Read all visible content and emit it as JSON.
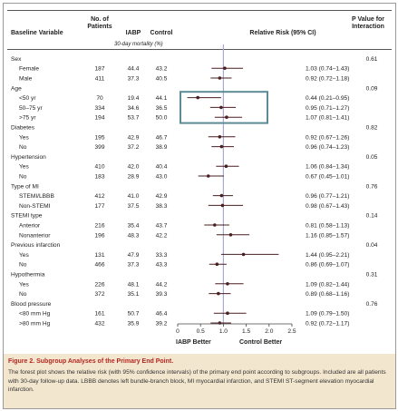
{
  "headers": {
    "variable": "Baseline Variable",
    "patients": "No. of Patients",
    "iabp": "IABP",
    "control": "Control",
    "mortality": "30-day mortality (%)",
    "rr": "Relative Risk (95% CI)",
    "pvalue": "P Value for Interaction"
  },
  "footer": {
    "left": "IABP Better",
    "right": "Control Better"
  },
  "caption": {
    "title": "Figure 2. Subgroup Analyses of the Primary End Point.",
    "body": "The forest plot shows the relative risk (with 95% confidence intervals) of the primary end point according to subgroups. Included are all patients with 30-day follow-up data. LBBB denotes left bundle-branch block, MI myocardial infarction, and STEMI ST-segment elevation myocardial infarction."
  },
  "colors": {
    "accent": "#b3261e",
    "caption_bg": "#f3e6cf",
    "highlight": "#5b8b95",
    "refline": "#a8aad0"
  },
  "chart_data": {
    "type": "forest",
    "xlim": [
      0,
      2.5
    ],
    "xticks": [
      0,
      0.5,
      1.0,
      1.5,
      2.0,
      2.5
    ],
    "xtick_labels": [
      "0",
      "0.5",
      "1.0",
      "1.5",
      "2.0",
      "2.5"
    ],
    "reference": 1.0,
    "rows": [
      {
        "kind": "group",
        "label": "Sex",
        "p": "0.61"
      },
      {
        "kind": "item",
        "label": "Female",
        "n": "187",
        "iabp": "44.4",
        "ctrl": "43.2",
        "rr": 1.03,
        "lo": 0.74,
        "hi": 1.43,
        "text": "1.03 (0.74–1.43)"
      },
      {
        "kind": "item",
        "label": "Male",
        "n": "411",
        "iabp": "37.3",
        "ctrl": "40.5",
        "rr": 0.92,
        "lo": 0.72,
        "hi": 1.18,
        "text": "0.92 (0.72–1.18)"
      },
      {
        "kind": "group",
        "label": "Age",
        "p": "0.09"
      },
      {
        "kind": "item",
        "label": "<50 yr",
        "n": "70",
        "iabp": "19.4",
        "ctrl": "44.1",
        "rr": 0.44,
        "lo": 0.21,
        "hi": 0.95,
        "text": "0.44 (0.21–0.95)"
      },
      {
        "kind": "item",
        "label": "50–75 yr",
        "n": "334",
        "iabp": "34.6",
        "ctrl": "36.5",
        "rr": 0.95,
        "lo": 0.71,
        "hi": 1.27,
        "text": "0.95 (0.71–1.27)"
      },
      {
        "kind": "item",
        "label": ">75 yr",
        "n": "194",
        "iabp": "53.7",
        "ctrl": "50.0",
        "rr": 1.07,
        "lo": 0.81,
        "hi": 1.41,
        "text": "1.07 (0.81–1.41)"
      },
      {
        "kind": "group",
        "label": "Diabetes",
        "p": "0.82"
      },
      {
        "kind": "item",
        "label": "Yes",
        "n": "195",
        "iabp": "42.9",
        "ctrl": "46.7",
        "rr": 0.92,
        "lo": 0.67,
        "hi": 1.26,
        "text": "0.92 (0.67–1.26)"
      },
      {
        "kind": "item",
        "label": "No",
        "n": "399",
        "iabp": "37.2",
        "ctrl": "38.9",
        "rr": 0.96,
        "lo": 0.74,
        "hi": 1.23,
        "text": "0.96 (0.74–1.23)"
      },
      {
        "kind": "group",
        "label": "Hypertension",
        "p": "0.05"
      },
      {
        "kind": "item",
        "label": "Yes",
        "n": "410",
        "iabp": "42.0",
        "ctrl": "40.4",
        "rr": 1.06,
        "lo": 0.84,
        "hi": 1.34,
        "text": "1.06 (0.84–1.34)"
      },
      {
        "kind": "item",
        "label": "No",
        "n": "183",
        "iabp": "28.9",
        "ctrl": "43.0",
        "rr": 0.67,
        "lo": 0.45,
        "hi": 1.01,
        "text": "0.67 (0.45–1.01)"
      },
      {
        "kind": "group",
        "label": "Type of MI",
        "p": "0.76"
      },
      {
        "kind": "item",
        "label": "STEMI/LBBB",
        "n": "412",
        "iabp": "41.0",
        "ctrl": "42.9",
        "rr": 0.96,
        "lo": 0.77,
        "hi": 1.21,
        "text": "0.96 (0.77–1.21)"
      },
      {
        "kind": "item",
        "label": "Non-STEMI",
        "n": "177",
        "iabp": "37.5",
        "ctrl": "38.3",
        "rr": 0.98,
        "lo": 0.67,
        "hi": 1.43,
        "text": "0.98 (0.67–1.43)"
      },
      {
        "kind": "group",
        "label": "STEMI type",
        "p": "0.14"
      },
      {
        "kind": "item",
        "label": "Anterior",
        "n": "216",
        "iabp": "35.4",
        "ctrl": "43.7",
        "rr": 0.81,
        "lo": 0.58,
        "hi": 1.13,
        "text": "0.81 (0.58–1.13)"
      },
      {
        "kind": "item",
        "label": "Nonanterior",
        "n": "196",
        "iabp": "48.3",
        "ctrl": "42.2",
        "rr": 1.16,
        "lo": 0.85,
        "hi": 1.57,
        "text": "1.16 (0.85–1.57)"
      },
      {
        "kind": "group",
        "label": "Previous infarction",
        "p": "0.04"
      },
      {
        "kind": "item",
        "label": "Yes",
        "n": "131",
        "iabp": "47.9",
        "ctrl": "33.3",
        "rr": 1.44,
        "lo": 0.95,
        "hi": 2.21,
        "text": "1.44 (0.95–2.21)"
      },
      {
        "kind": "item",
        "label": "No",
        "n": "466",
        "iabp": "37.3",
        "ctrl": "43.3",
        "rr": 0.86,
        "lo": 0.69,
        "hi": 1.07,
        "text": "0.86 (0.69–1.07)"
      },
      {
        "kind": "group",
        "label": "Hypothermia",
        "p": "0.31"
      },
      {
        "kind": "item",
        "label": "Yes",
        "n": "226",
        "iabp": "48.1",
        "ctrl": "44.2",
        "rr": 1.09,
        "lo": 0.82,
        "hi": 1.44,
        "text": "1.09 (0.82–1.44)"
      },
      {
        "kind": "item",
        "label": "No",
        "n": "372",
        "iabp": "35.1",
        "ctrl": "39.3",
        "rr": 0.89,
        "lo": 0.68,
        "hi": 1.16,
        "text": "0.89 (0.68–1.16)"
      },
      {
        "kind": "group",
        "label": "Blood pressure",
        "p": "0.76"
      },
      {
        "kind": "item",
        "label": "<80 mm Hg",
        "n": "161",
        "iabp": "50.7",
        "ctrl": "46.4",
        "rr": 1.09,
        "lo": 0.79,
        "hi": 1.5,
        "text": "1.09 (0.79–1.50)"
      },
      {
        "kind": "item",
        "label": ">80 mm Hg",
        "n": "432",
        "iabp": "35.9",
        "ctrl": "39.2",
        "rr": 0.92,
        "lo": 0.72,
        "hi": 1.17,
        "text": "0.92 (0.72–1.17)"
      }
    ]
  }
}
